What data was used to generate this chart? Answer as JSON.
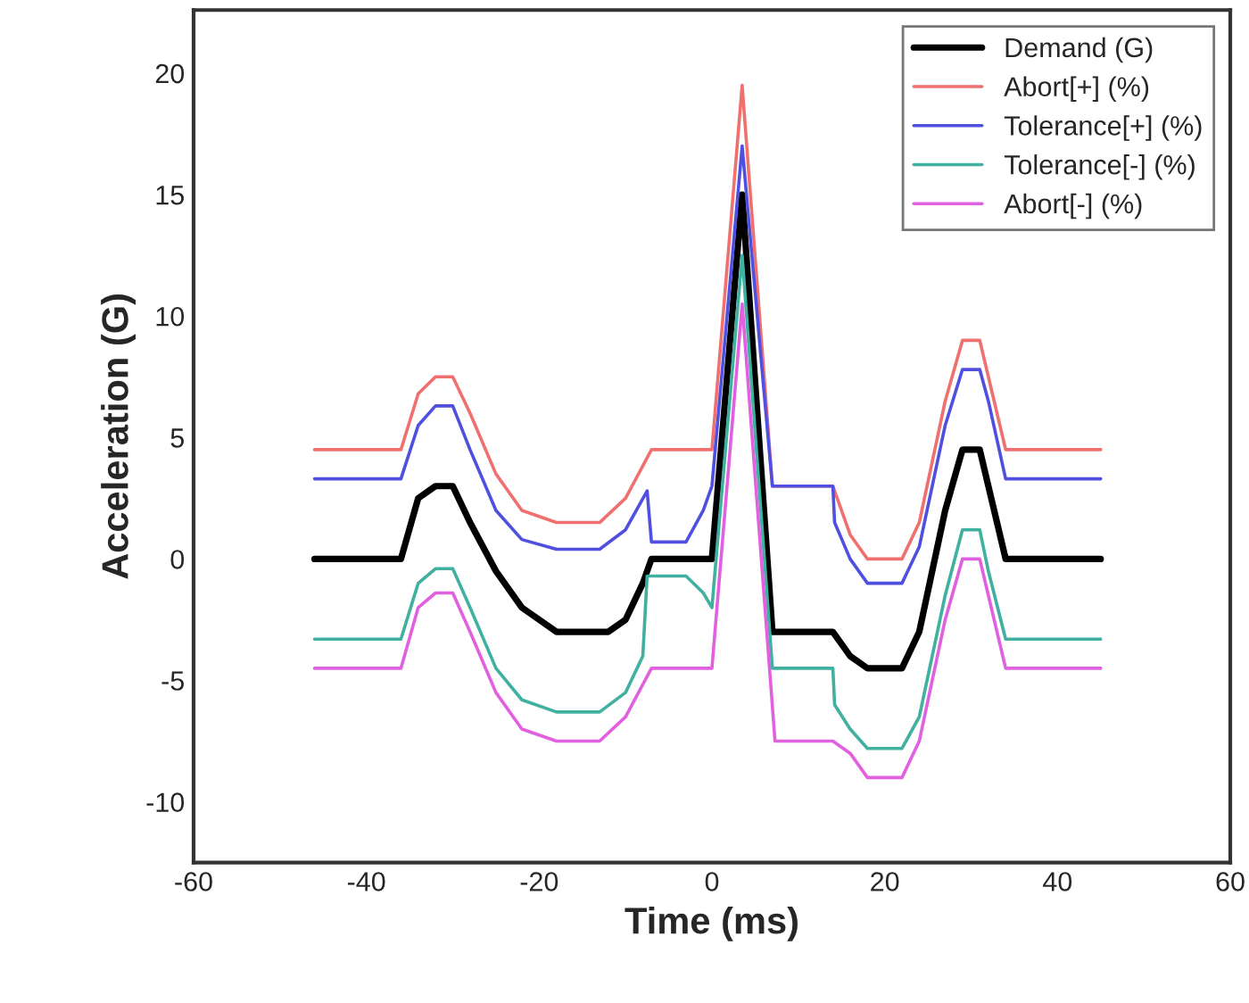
{
  "chart_data": {
    "type": "line",
    "xlabel": "Time (ms)",
    "ylabel": "Acceleration (G)",
    "xlim": [
      -60,
      60
    ],
    "xticks": [
      -60,
      -40,
      -20,
      0,
      20,
      40,
      60
    ],
    "ylim": [
      -12.5,
      22.6
    ],
    "yticks": [
      -10,
      -5,
      0,
      5,
      10,
      15,
      20
    ],
    "grid": false,
    "legend": "top right",
    "marker": "none",
    "line_style": "solid",
    "series": [
      {
        "name": "Demand (G)",
        "color": "#000000",
        "x": [
          -46,
          -36,
          -34,
          -32,
          -30,
          -28,
          -25,
          -22,
          -18,
          -12,
          -10,
          -8,
          -7,
          0,
          3.5,
          7,
          14,
          16,
          18,
          22,
          24,
          27,
          29,
          31,
          32,
          34,
          45
        ],
        "values": [
          0,
          0,
          2.5,
          3,
          3,
          1.5,
          -0.5,
          -2,
          -3,
          -3,
          -2.5,
          -1,
          0,
          0,
          15,
          -3,
          -3,
          -4,
          -4.5,
          -4.5,
          -3,
          2,
          4.5,
          4.5,
          3,
          0,
          0
        ]
      },
      {
        "name": "Abort[+] (%)",
        "color": "#f07070",
        "x": [
          -46,
          -36,
          -34,
          -32,
          -30,
          -28,
          -25,
          -22,
          -18,
          -13,
          -10,
          -7,
          0,
          3.5,
          7,
          14,
          16,
          18,
          22,
          24,
          27,
          29,
          31,
          32,
          34,
          45
        ],
        "values": [
          4.5,
          4.5,
          6.8,
          7.5,
          7.5,
          6,
          3.5,
          2,
          1.5,
          1.5,
          2.5,
          4.5,
          4.5,
          19.5,
          3,
          3,
          1,
          0,
          0,
          1.5,
          6.5,
          9,
          9,
          7.5,
          4.5,
          4.5
        ]
      },
      {
        "name": "Tolerance[+] (%)",
        "color": "#5050e0",
        "x": [
          -46,
          -36,
          -34,
          -32,
          -30,
          -28,
          -25,
          -22,
          -18,
          -13,
          -10,
          -7.5,
          -7,
          -3,
          -1,
          0,
          3.5,
          7,
          14,
          14.2,
          16,
          18,
          22,
          24,
          27,
          29,
          31,
          32,
          34,
          45
        ],
        "values": [
          3.3,
          3.3,
          5.5,
          6.3,
          6.3,
          4.5,
          2,
          0.8,
          0.4,
          0.4,
          1.2,
          2.8,
          0.7,
          0.7,
          2,
          3,
          17,
          3,
          3,
          1.5,
          0,
          -1,
          -1,
          0.5,
          5.5,
          7.8,
          7.8,
          6.5,
          3.3,
          3.3
        ]
      },
      {
        "name": "Tolerance[-] (%)",
        "color": "#40b0a0",
        "x": [
          -46,
          -36,
          -34,
          -32,
          -30,
          -28,
          -25,
          -22,
          -18,
          -13,
          -10,
          -8,
          -7.5,
          -3,
          -1,
          0,
          3.5,
          7,
          14,
          14.2,
          16,
          18,
          22,
          24,
          27,
          29,
          31,
          32,
          34,
          45
        ],
        "values": [
          -3.3,
          -3.3,
          -1,
          -0.4,
          -0.4,
          -2,
          -4.5,
          -5.8,
          -6.3,
          -6.3,
          -5.5,
          -4,
          -0.7,
          -0.7,
          -1.4,
          -2,
          12.5,
          -4.5,
          -4.5,
          -6,
          -7,
          -7.8,
          -7.8,
          -6.5,
          -1.5,
          1.2,
          1.2,
          -0.5,
          -3.3,
          -3.3
        ]
      },
      {
        "name": "Abort[-] (%)",
        "color": "#e060e0",
        "x": [
          -46,
          -36,
          -34,
          -32,
          -30,
          -28,
          -25,
          -22,
          -18,
          -13,
          -10,
          -7,
          0,
          3.5,
          7.3,
          14,
          16,
          18,
          22,
          24,
          27,
          29,
          31,
          32,
          34,
          45
        ],
        "values": [
          -4.5,
          -4.5,
          -2,
          -1.4,
          -1.4,
          -3,
          -5.5,
          -7,
          -7.5,
          -7.5,
          -6.5,
          -4.5,
          -4.5,
          10.5,
          -7.5,
          -7.5,
          -8,
          -9,
          -9,
          -7.5,
          -2.5,
          0,
          0,
          -1.5,
          -4.5,
          -4.5
        ]
      }
    ]
  }
}
